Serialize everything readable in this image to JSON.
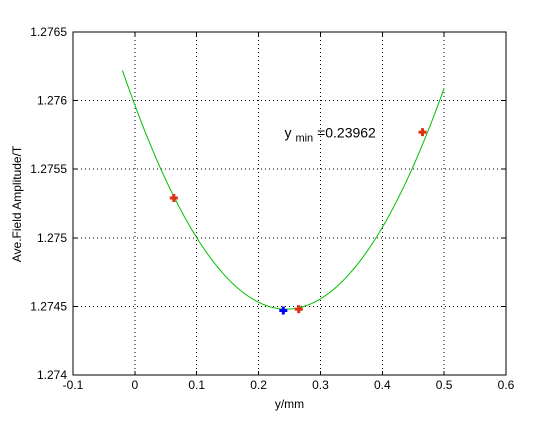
{
  "chart_data": {
    "type": "scatter",
    "xlabel": "y/mm",
    "ylabel": "Ave.Field Amplitude/T",
    "xlim": [
      -0.1,
      0.6
    ],
    "ylim": [
      1.274,
      1.2765
    ],
    "xticks": [
      -0.1,
      0,
      0.1,
      0.2,
      0.3,
      0.4,
      0.5,
      0.6
    ],
    "xtick_labels": [
      "-0.1",
      "0",
      "0.1",
      "0.2",
      "0.3",
      "0.4",
      "0.5",
      "0.6"
    ],
    "yticks": [
      1.274,
      1.2745,
      1.275,
      1.2755,
      1.276,
      1.2765
    ],
    "ytick_labels": [
      "1.274",
      "1.2745",
      "1.275",
      "1.2755",
      "1.276",
      "1.2765"
    ],
    "grid": true,
    "box": true,
    "series": [
      {
        "kind": "line",
        "color": "#00c000",
        "curve": "parabola",
        "x_range": [
          -0.02,
          0.5
        ],
        "vertex": [
          0.245,
          1.27448
        ],
        "points": [
          [
            -0.02,
            1.27622
          ],
          [
            0.5,
            1.27622
          ]
        ]
      },
      {
        "kind": "markers",
        "marker": "plus",
        "color": "#e03010",
        "points": [
          [
            0.063,
            1.27529
          ],
          [
            0.265,
            1.27448
          ],
          [
            0.465,
            1.27577
          ]
        ]
      },
      {
        "kind": "markers",
        "marker": "plus",
        "color": "#0000ff",
        "points": [
          [
            0.24,
            1.27447
          ]
        ]
      }
    ],
    "annotation": {
      "base": "y",
      "subscript": "min",
      "value_text": "=0.23962",
      "x": 0.242,
      "y": 1.27573
    }
  }
}
